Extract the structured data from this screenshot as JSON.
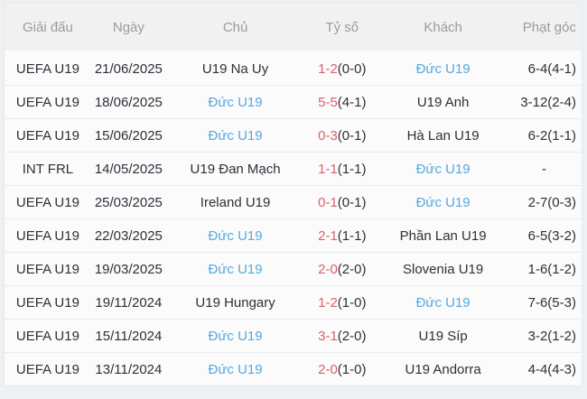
{
  "colors": {
    "page_background": "#edf1f4",
    "header_background": "#f1f1f1",
    "header_text": "#9b9b9b",
    "row_background": "#fbfbfb",
    "body_text": "#2f2f3a",
    "fulltime_score": "#e15d6d",
    "highlight_team": "#56a9de"
  },
  "table": {
    "columns": [
      {
        "key": "league",
        "label": "Giải đấu"
      },
      {
        "key": "date",
        "label": "Ngày"
      },
      {
        "key": "home",
        "label": "Chủ"
      },
      {
        "key": "score",
        "label": "Tỷ số"
      },
      {
        "key": "away",
        "label": "Khách"
      },
      {
        "key": "corners",
        "label": "Phạt góc"
      }
    ],
    "rows": [
      {
        "league": "UEFA U19",
        "date": "21/06/2025",
        "home": "U19 Na Uy",
        "home_highlight": false,
        "score_ft": "1-2",
        "score_ht": "(0-0)",
        "away": "Đức U19",
        "away_highlight": true,
        "corners": "6-4(4-1)"
      },
      {
        "league": "UEFA U19",
        "date": "18/06/2025",
        "home": "Đức U19",
        "home_highlight": true,
        "score_ft": "5-5",
        "score_ht": "(4-1)",
        "away": "U19 Anh",
        "away_highlight": false,
        "corners": "3-12(2-4)"
      },
      {
        "league": "UEFA U19",
        "date": "15/06/2025",
        "home": "Đức U19",
        "home_highlight": true,
        "score_ft": "0-3",
        "score_ht": "(0-1)",
        "away": "Hà Lan U19",
        "away_highlight": false,
        "corners": "6-2(1-1)"
      },
      {
        "league": "INT FRL",
        "date": "14/05/2025",
        "home": "U19 Đan Mạch",
        "home_highlight": false,
        "score_ft": "1-1",
        "score_ht": "(1-1)",
        "away": "Đức U19",
        "away_highlight": true,
        "corners": "-"
      },
      {
        "league": "UEFA U19",
        "date": "25/03/2025",
        "home": "Ireland U19",
        "home_highlight": false,
        "score_ft": "0-1",
        "score_ht": "(0-1)",
        "away": "Đức U19",
        "away_highlight": true,
        "corners": "2-7(0-3)"
      },
      {
        "league": "UEFA U19",
        "date": "22/03/2025",
        "home": "Đức U19",
        "home_highlight": true,
        "score_ft": "2-1",
        "score_ht": "(1-1)",
        "away": "Phần Lan U19",
        "away_highlight": false,
        "corners": "6-5(3-2)"
      },
      {
        "league": "UEFA U19",
        "date": "19/03/2025",
        "home": "Đức U19",
        "home_highlight": true,
        "score_ft": "2-0",
        "score_ht": "(2-0)",
        "away": "Slovenia U19",
        "away_highlight": false,
        "corners": "1-6(1-2)"
      },
      {
        "league": "UEFA U19",
        "date": "19/11/2024",
        "home": "U19 Hungary",
        "home_highlight": false,
        "score_ft": "1-2",
        "score_ht": "(1-0)",
        "away": "Đức U19",
        "away_highlight": true,
        "corners": "7-6(5-3)"
      },
      {
        "league": "UEFA U19",
        "date": "15/11/2024",
        "home": "Đức U19",
        "home_highlight": true,
        "score_ft": "3-1",
        "score_ht": "(2-0)",
        "away": "U19 Síp",
        "away_highlight": false,
        "corners": "3-2(1-2)"
      },
      {
        "league": "UEFA U19",
        "date": "13/11/2024",
        "home": "Đức U19",
        "home_highlight": true,
        "score_ft": "2-0",
        "score_ht": "(1-0)",
        "away": "U19 Andorra",
        "away_highlight": false,
        "corners": "4-4(4-3)"
      }
    ]
  }
}
